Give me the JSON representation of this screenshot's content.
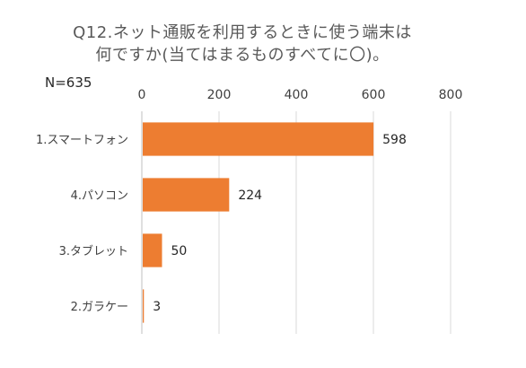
{
  "chart_data": {
    "type": "bar",
    "orientation": "horizontal",
    "title_lines": [
      "Q12.ネット通販を利用するときに使う端末は",
      "何ですか(当てはまるものすべてに〇)。"
    ],
    "n_label": "N=635",
    "categories": [
      "1.スマートフォン",
      "4.パソコン",
      "3.タブレット",
      "2.ガラケー"
    ],
    "values": [
      598,
      224,
      50,
      3
    ],
    "xlim": [
      0,
      800
    ],
    "ticks": [
      0,
      200,
      400,
      600,
      800
    ],
    "xaxis_position": "top",
    "grid": true,
    "legend": "none",
    "bar_color": "#ED7D31",
    "grid_color": "#D9D9D9"
  }
}
